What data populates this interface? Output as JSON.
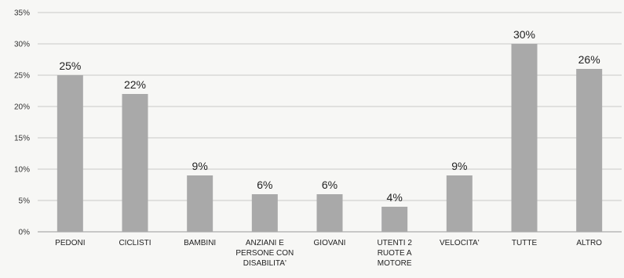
{
  "chart_data": {
    "type": "bar",
    "categories": [
      "PEDONI",
      "CICLISTI",
      "BAMBINI",
      "ANZIANI E\nPERSONE CON\nDISABILITA'",
      "GIOVANI",
      "UTENTI 2\nRUOTE A\nMOTORE",
      "VELOCITA'",
      "TUTTE",
      "ALTRO"
    ],
    "values": [
      25,
      22,
      9,
      6,
      6,
      4,
      9,
      30,
      26
    ],
    "data_labels": [
      "25%",
      "22%",
      "9%",
      "6%",
      "6%",
      "4%",
      "9%",
      "30%",
      "26%"
    ],
    "y_ticks": [
      0,
      5,
      10,
      15,
      20,
      25,
      30,
      35
    ],
    "y_tick_labels": [
      "0%",
      "5%",
      "10%",
      "15%",
      "20%",
      "25%",
      "30%",
      "35%"
    ],
    "ylim": [
      0,
      35
    ],
    "grid": true,
    "legend": "none",
    "title": "",
    "xlabel": "",
    "ylabel": "",
    "bar_color": "#a9a9a9",
    "background_color": "#f7f7f5"
  }
}
